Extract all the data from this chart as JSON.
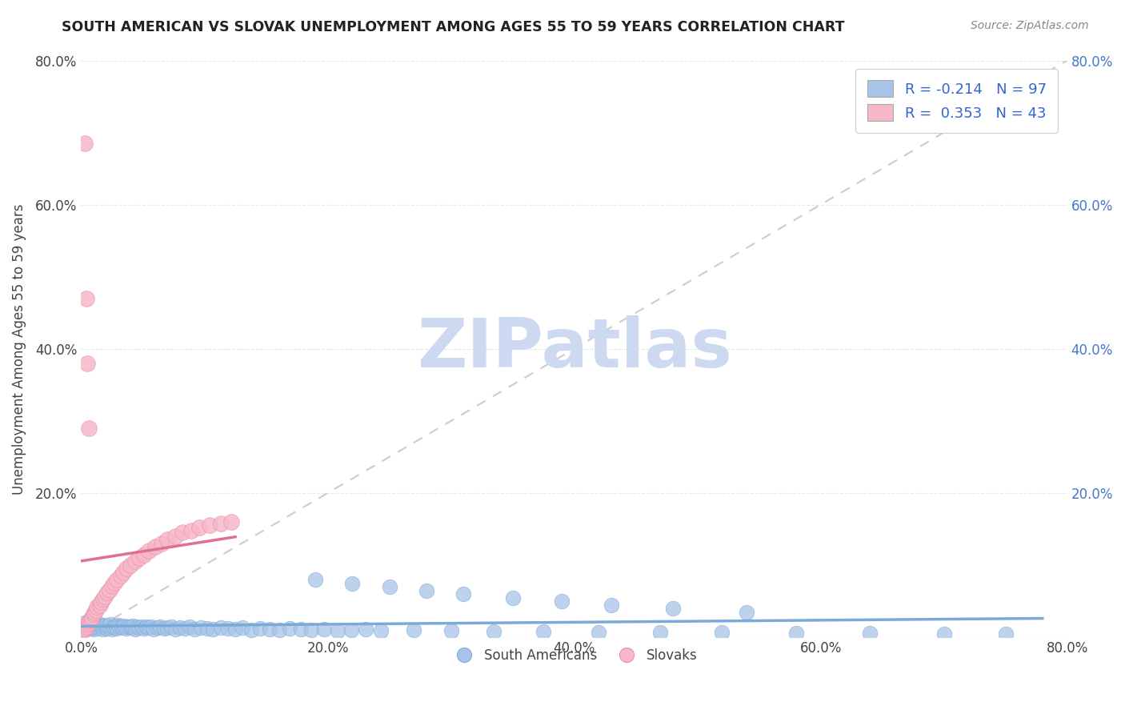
{
  "title": "SOUTH AMERICAN VS SLOVAK UNEMPLOYMENT AMONG AGES 55 TO 59 YEARS CORRELATION CHART",
  "source": "Source: ZipAtlas.com",
  "ylabel": "Unemployment Among Ages 55 to 59 years",
  "xlim": [
    0.0,
    0.8
  ],
  "ylim": [
    0.0,
    0.8
  ],
  "xticks": [
    0.0,
    0.2,
    0.4,
    0.6,
    0.8
  ],
  "yticks": [
    0.0,
    0.2,
    0.4,
    0.6,
    0.8
  ],
  "xticklabels": [
    "0.0%",
    "20.0%",
    "40.0%",
    "60.0%",
    "80.0%"
  ],
  "yticklabels_left": [
    "",
    "20.0%",
    "40.0%",
    "60.0%",
    "80.0%"
  ],
  "yticklabels_right": [
    "",
    "20.0%",
    "40.0%",
    "60.0%",
    "80.0%"
  ],
  "background_color": "#ffffff",
  "watermark_text": "ZIPatlas",
  "watermark_color": "#ccd9f0",
  "south_american_color": "#a8c4e8",
  "south_american_edge": "#7aaad8",
  "slovak_color": "#f7b8c8",
  "slovak_edge": "#e890a8",
  "south_american_R": -0.214,
  "south_american_N": 97,
  "slovak_R": 0.353,
  "slovak_N": 43,
  "legend_color": "#3366cc",
  "diagonal_color": "#cccccc",
  "sa_line_color": "#7aaad8",
  "sk_line_color": "#e07090",
  "grid_color": "#e8e8e8",
  "title_color": "#222222",
  "source_color": "#888888",
  "tick_color": "#444444",
  "right_tick_color": "#4477cc",
  "sa_x": [
    0.003,
    0.005,
    0.006,
    0.007,
    0.008,
    0.009,
    0.01,
    0.01,
    0.011,
    0.012,
    0.013,
    0.014,
    0.015,
    0.016,
    0.017,
    0.018,
    0.019,
    0.02,
    0.02,
    0.021,
    0.022,
    0.023,
    0.024,
    0.025,
    0.026,
    0.027,
    0.028,
    0.029,
    0.03,
    0.031,
    0.033,
    0.034,
    0.035,
    0.037,
    0.038,
    0.04,
    0.041,
    0.042,
    0.044,
    0.045,
    0.047,
    0.049,
    0.051,
    0.053,
    0.055,
    0.057,
    0.059,
    0.062,
    0.064,
    0.067,
    0.07,
    0.073,
    0.076,
    0.08,
    0.084,
    0.088,
    0.092,
    0.097,
    0.102,
    0.107,
    0.113,
    0.119,
    0.125,
    0.131,
    0.138,
    0.145,
    0.153,
    0.161,
    0.169,
    0.178,
    0.187,
    0.197,
    0.208,
    0.219,
    0.231,
    0.243,
    0.27,
    0.3,
    0.335,
    0.375,
    0.42,
    0.47,
    0.52,
    0.58,
    0.64,
    0.7,
    0.75,
    0.19,
    0.22,
    0.25,
    0.28,
    0.31,
    0.35,
    0.39,
    0.43,
    0.48,
    0.54
  ],
  "sa_y": [
    0.02,
    0.015,
    0.018,
    0.012,
    0.016,
    0.014,
    0.011,
    0.019,
    0.013,
    0.017,
    0.015,
    0.012,
    0.018,
    0.014,
    0.016,
    0.011,
    0.015,
    0.013,
    0.017,
    0.012,
    0.016,
    0.014,
    0.018,
    0.011,
    0.015,
    0.013,
    0.016,
    0.012,
    0.017,
    0.014,
    0.015,
    0.013,
    0.016,
    0.012,
    0.014,
    0.015,
    0.013,
    0.016,
    0.011,
    0.014,
    0.013,
    0.015,
    0.012,
    0.014,
    0.013,
    0.015,
    0.011,
    0.013,
    0.014,
    0.012,
    0.013,
    0.014,
    0.011,
    0.013,
    0.012,
    0.014,
    0.011,
    0.013,
    0.012,
    0.011,
    0.013,
    0.012,
    0.011,
    0.013,
    0.01,
    0.012,
    0.011,
    0.01,
    0.012,
    0.011,
    0.01,
    0.011,
    0.009,
    0.01,
    0.011,
    0.009,
    0.01,
    0.009,
    0.008,
    0.008,
    0.007,
    0.007,
    0.007,
    0.006,
    0.006,
    0.005,
    0.005,
    0.08,
    0.075,
    0.07,
    0.065,
    0.06,
    0.055,
    0.05,
    0.045,
    0.04,
    0.035
  ],
  "sk_x": [
    0.002,
    0.003,
    0.004,
    0.005,
    0.006,
    0.007,
    0.008,
    0.009,
    0.01,
    0.011,
    0.012,
    0.013,
    0.015,
    0.016,
    0.018,
    0.019,
    0.021,
    0.023,
    0.025,
    0.027,
    0.029,
    0.032,
    0.034,
    0.037,
    0.04,
    0.044,
    0.047,
    0.051,
    0.055,
    0.06,
    0.065,
    0.07,
    0.076,
    0.082,
    0.089,
    0.096,
    0.104,
    0.113,
    0.122,
    0.003,
    0.004,
    0.005,
    0.006
  ],
  "sk_y": [
    0.01,
    0.012,
    0.015,
    0.018,
    0.02,
    0.023,
    0.025,
    0.028,
    0.032,
    0.035,
    0.038,
    0.042,
    0.045,
    0.049,
    0.053,
    0.057,
    0.062,
    0.066,
    0.071,
    0.076,
    0.08,
    0.086,
    0.09,
    0.096,
    0.1,
    0.106,
    0.11,
    0.115,
    0.12,
    0.125,
    0.13,
    0.135,
    0.14,
    0.145,
    0.148,
    0.152,
    0.155,
    0.158,
    0.16,
    0.685,
    0.47,
    0.38,
    0.29
  ]
}
